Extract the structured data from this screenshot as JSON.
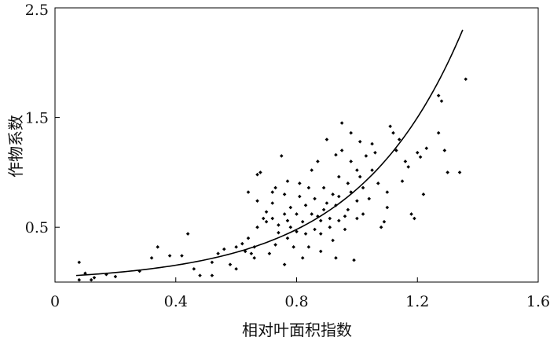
{
  "chart_data": {
    "type": "scatter",
    "title": "",
    "xlabel": "相对叶面积指数",
    "ylabel": "作物系数",
    "xlim": [
      0,
      1.6
    ],
    "ylim": [
      0,
      2.5
    ],
    "xticks": [
      "0",
      "0.4",
      "0.8",
      "1.2",
      "1.6"
    ],
    "xtick_values": [
      0,
      0.4,
      0.8,
      1.2,
      1.6
    ],
    "yticks": [
      "0.5",
      "1.5",
      "2.5"
    ],
    "ytick_values": [
      0.5,
      1.5,
      2.5
    ],
    "grid": false,
    "colors": {
      "points": "#000000",
      "curve": "#000000",
      "frame": "#000000"
    },
    "series": [
      {
        "kind": "scatter",
        "points": [
          [
            0.08,
            0.18
          ],
          [
            0.08,
            0.02
          ],
          [
            0.1,
            0.08
          ],
          [
            0.12,
            0.02
          ],
          [
            0.13,
            0.04
          ],
          [
            0.17,
            0.07
          ],
          [
            0.2,
            0.05
          ],
          [
            0.28,
            0.1
          ],
          [
            0.32,
            0.22
          ],
          [
            0.34,
            0.32
          ],
          [
            0.38,
            0.24
          ],
          [
            0.42,
            0.24
          ],
          [
            0.44,
            0.44
          ],
          [
            0.46,
            0.12
          ],
          [
            0.48,
            0.06
          ],
          [
            0.52,
            0.06
          ],
          [
            0.52,
            0.18
          ],
          [
            0.54,
            0.26
          ],
          [
            0.56,
            0.3
          ],
          [
            0.58,
            0.16
          ],
          [
            0.6,
            0.12
          ],
          [
            0.6,
            0.32
          ],
          [
            0.62,
            0.35
          ],
          [
            0.63,
            0.28
          ],
          [
            0.64,
            0.4
          ],
          [
            0.64,
            0.82
          ],
          [
            0.65,
            0.26
          ],
          [
            0.66,
            0.22
          ],
          [
            0.66,
            0.32
          ],
          [
            0.67,
            0.5
          ],
          [
            0.67,
            0.74
          ],
          [
            0.67,
            0.98
          ],
          [
            0.68,
            1.0
          ],
          [
            0.69,
            0.58
          ],
          [
            0.7,
            0.55
          ],
          [
            0.7,
            0.64
          ],
          [
            0.71,
            0.26
          ],
          [
            0.72,
            0.58
          ],
          [
            0.72,
            0.72
          ],
          [
            0.72,
            0.82
          ],
          [
            0.73,
            0.86
          ],
          [
            0.73,
            0.34
          ],
          [
            0.74,
            0.45
          ],
          [
            0.74,
            0.52
          ],
          [
            0.75,
            1.15
          ],
          [
            0.76,
            0.16
          ],
          [
            0.76,
            0.62
          ],
          [
            0.76,
            0.8
          ],
          [
            0.77,
            0.4
          ],
          [
            0.77,
            0.56
          ],
          [
            0.77,
            0.92
          ],
          [
            0.78,
            0.5
          ],
          [
            0.78,
            0.68
          ],
          [
            0.79,
            0.32
          ],
          [
            0.8,
            0.62
          ],
          [
            0.8,
            0.46
          ],
          [
            0.81,
            0.78
          ],
          [
            0.81,
            0.9
          ],
          [
            0.82,
            0.55
          ],
          [
            0.82,
            0.22
          ],
          [
            0.83,
            0.44
          ],
          [
            0.83,
            0.7
          ],
          [
            0.84,
            0.86
          ],
          [
            0.84,
            0.32
          ],
          [
            0.85,
            1.02
          ],
          [
            0.85,
            0.62
          ],
          [
            0.86,
            0.48
          ],
          [
            0.86,
            0.76
          ],
          [
            0.87,
            1.1
          ],
          [
            0.87,
            0.6
          ],
          [
            0.88,
            0.44
          ],
          [
            0.88,
            0.56
          ],
          [
            0.88,
            0.28
          ],
          [
            0.89,
            0.86
          ],
          [
            0.89,
            0.66
          ],
          [
            0.9,
            1.3
          ],
          [
            0.9,
            0.72
          ],
          [
            0.91,
            0.58
          ],
          [
            0.91,
            0.5
          ],
          [
            0.92,
            0.8
          ],
          [
            0.92,
            0.38
          ],
          [
            0.93,
            1.16
          ],
          [
            0.93,
            0.7
          ],
          [
            0.93,
            0.22
          ],
          [
            0.94,
            0.96
          ],
          [
            0.94,
            0.78
          ],
          [
            0.94,
            0.56
          ],
          [
            0.95,
            1.45
          ],
          [
            0.95,
            1.2
          ],
          [
            0.96,
            0.6
          ],
          [
            0.96,
            0.48
          ],
          [
            0.97,
            0.66
          ],
          [
            0.97,
            0.9
          ],
          [
            0.98,
            1.36
          ],
          [
            0.98,
            1.1
          ],
          [
            0.98,
            0.82
          ],
          [
            0.99,
            0.2
          ],
          [
            1.0,
            0.58
          ],
          [
            1.0,
            0.74
          ],
          [
            1.0,
            1.02
          ],
          [
            1.01,
            1.28
          ],
          [
            1.01,
            0.96
          ],
          [
            1.02,
            0.62
          ],
          [
            1.02,
            0.86
          ],
          [
            1.03,
            1.15
          ],
          [
            1.04,
            0.76
          ],
          [
            1.05,
            1.26
          ],
          [
            1.05,
            1.02
          ],
          [
            1.06,
            1.18
          ],
          [
            1.07,
            0.9
          ],
          [
            1.08,
            0.5
          ],
          [
            1.09,
            0.55
          ],
          [
            1.1,
            0.68
          ],
          [
            1.1,
            0.82
          ],
          [
            1.11,
            1.42
          ],
          [
            1.12,
            1.36
          ],
          [
            1.13,
            1.2
          ],
          [
            1.14,
            1.3
          ],
          [
            1.15,
            0.92
          ],
          [
            1.16,
            1.1
          ],
          [
            1.17,
            1.05
          ],
          [
            1.18,
            0.62
          ],
          [
            1.19,
            0.58
          ],
          [
            1.2,
            1.18
          ],
          [
            1.21,
            1.14
          ],
          [
            1.22,
            0.8
          ],
          [
            1.23,
            1.22
          ],
          [
            1.27,
            1.36
          ],
          [
            1.27,
            1.7
          ],
          [
            1.28,
            1.65
          ],
          [
            1.29,
            1.2
          ],
          [
            1.3,
            1.0
          ],
          [
            1.34,
            1.0
          ],
          [
            1.36,
            1.85
          ]
        ]
      },
      {
        "kind": "fitted-curve",
        "model": "exponential",
        "x_start": 0.07,
        "x_end": 1.35,
        "y_at_start": 0.06,
        "y_at_end": 2.3
      }
    ]
  }
}
